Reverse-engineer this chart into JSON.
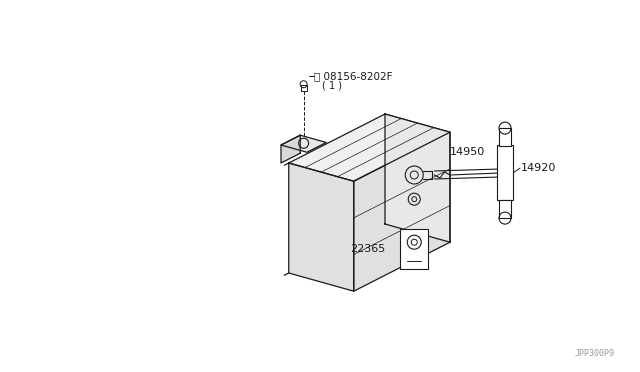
{
  "bg_color": "#ffffff",
  "line_color": "#1a1a1a",
  "label_color": "#1a1a1a",
  "watermark": "JPP300P9",
  "fig_w": 6.4,
  "fig_h": 3.72,
  "dpi": 100
}
